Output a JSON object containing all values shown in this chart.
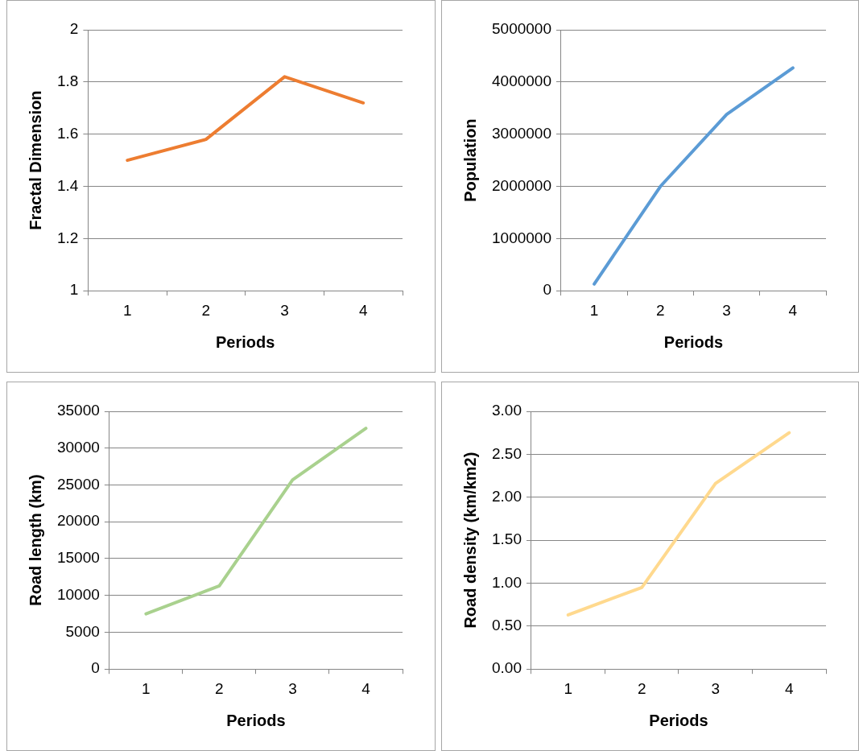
{
  "chart_data": [
    {
      "type": "line",
      "xlabel": "Periods",
      "ylabel": "Fractal Dimension",
      "categories": [
        "1",
        "2",
        "3",
        "4"
      ],
      "series": [
        {
          "color": "#ed7d31",
          "values": [
            1.5,
            1.58,
            1.82,
            1.72
          ]
        }
      ],
      "ylim": [
        1,
        2
      ],
      "yticks": [
        1,
        1.2,
        1.4,
        1.6,
        1.8,
        2
      ],
      "grid": "y",
      "legend": false,
      "marker": "none"
    },
    {
      "type": "line",
      "xlabel": "Periods",
      "ylabel": "Population",
      "categories": [
        "1",
        "2",
        "3",
        "4"
      ],
      "series": [
        {
          "color": "#5b9bd5",
          "values": [
            130000,
            2000000,
            3380000,
            4270000
          ]
        }
      ],
      "ylim": [
        0,
        5000000
      ],
      "yticks": [
        0,
        1000000,
        2000000,
        3000000,
        4000000,
        5000000
      ],
      "grid": "y",
      "legend": false,
      "marker": "none"
    },
    {
      "type": "line",
      "xlabel": "Periods",
      "ylabel": "Road length (km)",
      "categories": [
        "1",
        "2",
        "3",
        "4"
      ],
      "series": [
        {
          "color": "#a9d18e",
          "values": [
            7500,
            11300,
            25700,
            32700
          ]
        }
      ],
      "ylim": [
        0,
        35000
      ],
      "yticks": [
        0,
        5000,
        10000,
        15000,
        20000,
        25000,
        30000,
        35000
      ],
      "grid": "y",
      "legend": false,
      "marker": "none"
    },
    {
      "type": "line",
      "xlabel": "Periods",
      "ylabel": "Road density (km/km2)",
      "categories": [
        "1",
        "2",
        "3",
        "4"
      ],
      "series": [
        {
          "color": "#ffd98e",
          "values": [
            0.63,
            0.95,
            2.16,
            2.75
          ]
        }
      ],
      "ylim": [
        0,
        3
      ],
      "yticks": [
        {
          "value": 0,
          "label": "0.00"
        },
        {
          "value": 0.5,
          "label": "0.50"
        },
        {
          "value": 1,
          "label": "1.00"
        },
        {
          "value": 1.5,
          "label": "1.50"
        },
        {
          "value": 2,
          "label": "2.00"
        },
        {
          "value": 2.5,
          "label": "2.50"
        },
        {
          "value": 3,
          "label": "3.00"
        }
      ],
      "grid": "y",
      "legend": false,
      "marker": "none"
    }
  ]
}
